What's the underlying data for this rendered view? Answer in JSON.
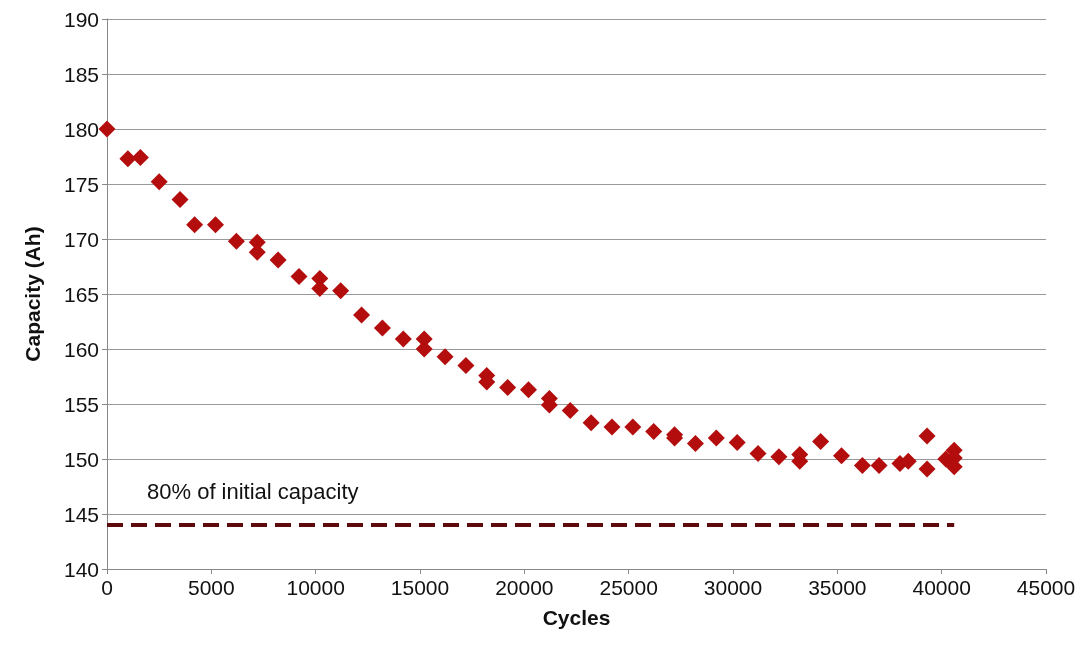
{
  "chart_data": {
    "type": "scatter",
    "xlabel": "Cycles",
    "ylabel": "Capacity (Ah)",
    "xlim": [
      0,
      45000
    ],
    "xticks": [
      0,
      5000,
      10000,
      15000,
      20000,
      25000,
      30000,
      35000,
      40000,
      45000
    ],
    "ylim": [
      140,
      190
    ],
    "yticks": [
      140,
      145,
      150,
      155,
      160,
      165,
      170,
      175,
      180,
      185,
      190
    ],
    "grid": "y",
    "legend": false,
    "marker": "diamond",
    "series": [
      {
        "color": "#b30d0d",
        "x": [
          0,
          1000,
          1600,
          2500,
          3500,
          4200,
          5200,
          6200,
          7200,
          7200,
          8200,
          9200,
          10200,
          10200,
          11200,
          12200,
          13200,
          14200,
          15200,
          15200,
          16200,
          17200,
          18200,
          18200,
          19200,
          20200,
          21200,
          21200,
          22200,
          23200,
          24200,
          25200,
          26200,
          27200,
          27200,
          28200,
          29200,
          30200,
          31200,
          32200,
          33200,
          33200,
          34200,
          35200,
          36200,
          37000,
          38000,
          38400,
          39300,
          39300,
          40200,
          40600,
          40600,
          40600
        ],
        "values": [
          180,
          177.3,
          177.4,
          175.2,
          173.6,
          171.3,
          171.3,
          169.8,
          169.7,
          168.8,
          168.1,
          166.6,
          166.4,
          165.5,
          165.3,
          163.1,
          161.9,
          160.9,
          160.9,
          160.0,
          159.3,
          158.5,
          157.6,
          157.0,
          156.5,
          156.3,
          155.5,
          154.9,
          154.4,
          153.3,
          152.9,
          152.9,
          152.5,
          152.2,
          151.9,
          151.4,
          151.9,
          151.5,
          150.5,
          150.2,
          150.4,
          149.8,
          151.6,
          150.3,
          149.4,
          149.4,
          149.6,
          149.8,
          152.1,
          149.1,
          150.0,
          150.8,
          150.1,
          149.3
        ]
      },
      {
        "type": "line",
        "name": "80% of initial capacity",
        "color": "#5c0a0a",
        "line_style": "dashed",
        "marker": "none",
        "x": [
          0,
          40600
        ],
        "values": [
          144,
          144
        ]
      }
    ]
  }
}
